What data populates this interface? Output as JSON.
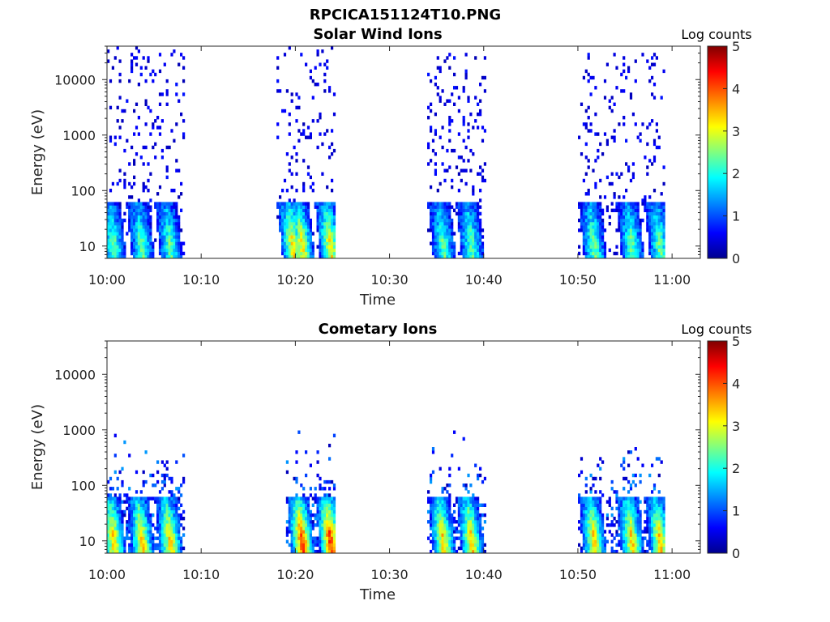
{
  "figure": {
    "filename": "RPCICA151124T10.PNG"
  },
  "colormap": {
    "name": "jet",
    "stops": [
      "#00008F",
      "#0000FF",
      "#00FFFF",
      "#FFFF00",
      "#FF0000",
      "#800000"
    ]
  },
  "chart_data": [
    {
      "type": "heatmap",
      "title": "Solar Wind Ions",
      "xlabel": "Time",
      "ylabel": "Energy (eV)",
      "x_unit": "HH:MM",
      "xlim": [
        "10:00",
        "11:03"
      ],
      "xticks": [
        "10:00",
        "10:10",
        "10:20",
        "10:30",
        "10:40",
        "10:50",
        "11:00"
      ],
      "yscale": "log",
      "ylim": [
        6,
        40000
      ],
      "yticks": [
        10,
        100,
        1000,
        10000
      ],
      "ytick_labels": [
        "10",
        "100",
        "1000",
        "10000"
      ],
      "colorbar": {
        "label": "Log counts",
        "range": [
          0,
          5
        ],
        "ticks": [
          0,
          1,
          2,
          3,
          4,
          5
        ]
      },
      "clusters": [
        {
          "start": "10:00",
          "end": "10:08",
          "low_energy_core": [
            "10:00",
            "10:03",
            "10:06"
          ],
          "max_energy": 40000,
          "peak_log_counts": 2.0
        },
        {
          "start": "10:18",
          "end": "10:24",
          "low_energy_core": [
            "10:19",
            "10:20",
            "10:23"
          ],
          "max_energy": 40000,
          "peak_log_counts": 2.8
        },
        {
          "start": "10:34",
          "end": "10:40",
          "low_energy_core": [
            "10:35",
            "10:38"
          ],
          "max_energy": 30000,
          "peak_log_counts": 2.0
        },
        {
          "start": "10:50",
          "end": "10:59",
          "low_energy_core": [
            "10:51",
            "10:55",
            "10:58"
          ],
          "max_energy": 30000,
          "peak_log_counts": 2.1
        }
      ]
    },
    {
      "type": "heatmap",
      "title": "Cometary Ions",
      "xlabel": "Time",
      "ylabel": "Energy (eV)",
      "x_unit": "HH:MM",
      "xlim": [
        "10:00",
        "11:03"
      ],
      "xticks": [
        "10:00",
        "10:10",
        "10:20",
        "10:30",
        "10:40",
        "10:50",
        "11:00"
      ],
      "yscale": "log",
      "ylim": [
        6,
        40000
      ],
      "yticks": [
        10,
        100,
        1000,
        10000
      ],
      "ytick_labels": [
        "10",
        "100",
        "1000",
        "10000"
      ],
      "colorbar": {
        "label": "Log counts",
        "range": [
          0,
          5
        ],
        "ticks": [
          0,
          1,
          2,
          3,
          4,
          5
        ]
      },
      "clusters": [
        {
          "start": "10:00",
          "end": "10:08",
          "low_energy_core": [
            "10:00",
            "10:03",
            "10:06"
          ],
          "max_energy": 800,
          "peak_log_counts": 3.0
        },
        {
          "start": "10:19",
          "end": "10:24",
          "low_energy_core": [
            "10:20",
            "10:23"
          ],
          "max_energy": 1000,
          "peak_log_counts": 3.8
        },
        {
          "start": "10:34",
          "end": "10:40",
          "low_energy_core": [
            "10:35",
            "10:38"
          ],
          "max_energy": 1200,
          "peak_log_counts": 3.0
        },
        {
          "start": "10:50",
          "end": "10:59",
          "low_energy_core": [
            "10:51",
            "10:55",
            "10:58"
          ],
          "max_energy": 700,
          "peak_log_counts": 3.0
        }
      ]
    }
  ]
}
